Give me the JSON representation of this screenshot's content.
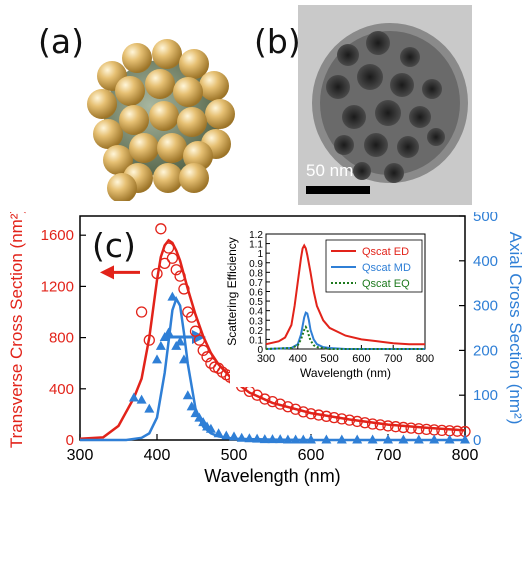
{
  "panels": {
    "a": "(a)",
    "b": "(b)",
    "c": "(c)"
  },
  "tem_scale_label": "50 nm",
  "colors": {
    "red": "#e2231a",
    "blue": "#2f7fd6",
    "green": "#1e7a1e",
    "gold": "#d9b15f",
    "core": "#5f6f52"
  },
  "chart_data": [
    {
      "type": "line",
      "xlabel": "Wavelength (nm)",
      "ylabel_left": "Transverse Cross Section (nm²)",
      "ylabel_right": "Axial Cross Section (nm²)",
      "xlim": [
        300,
        800
      ],
      "ylim_left": [
        0,
        1750
      ],
      "ylim_right": [
        0,
        500
      ],
      "xticks": [
        300,
        400,
        500,
        600,
        700,
        800
      ],
      "yticks_left": [
        0,
        400,
        800,
        1200,
        1600
      ],
      "yticks_right": [
        0,
        100,
        200,
        300,
        400,
        500
      ],
      "series": [
        {
          "axis": "left",
          "style": "line",
          "color": "#e2231a",
          "x": [
            300,
            330,
            350,
            370,
            380,
            390,
            400,
            405,
            410,
            415,
            420,
            425,
            430,
            440,
            450,
            460,
            470,
            480,
            500,
            520,
            550,
            600,
            650,
            700,
            750,
            800
          ],
          "y": [
            10,
            20,
            110,
            330,
            480,
            800,
            1250,
            1430,
            1520,
            1560,
            1540,
            1480,
            1400,
            1180,
            980,
            810,
            680,
            590,
            460,
            370,
            290,
            210,
            160,
            120,
            95,
            75
          ]
        },
        {
          "axis": "left",
          "style": "circle",
          "color": "#e2231a",
          "x": [
            380,
            390,
            400,
            405,
            410,
            415,
            420,
            425,
            430,
            435,
            440,
            445,
            450,
            455,
            460,
            465,
            470,
            475,
            480,
            485,
            490,
            495,
            500,
            510,
            520,
            530,
            540,
            550,
            560,
            570,
            580,
            590,
            600,
            610,
            620,
            630,
            640,
            650,
            660,
            670,
            680,
            690,
            700,
            710,
            720,
            730,
            740,
            750,
            760,
            770,
            780,
            790,
            800
          ],
          "y": [
            1000,
            780,
            1300,
            1650,
            1380,
            1500,
            1420,
            1330,
            1280,
            1180,
            1000,
            960,
            850,
            780,
            700,
            650,
            600,
            570,
            560,
            530,
            510,
            490,
            470,
            420,
            380,
            350,
            320,
            300,
            280,
            260,
            240,
            220,
            205,
            195,
            185,
            175,
            165,
            155,
            145,
            135,
            125,
            118,
            110,
            104,
            98,
            93,
            88,
            83,
            79,
            75,
            72,
            69,
            66
          ]
        },
        {
          "axis": "right",
          "style": "line",
          "color": "#2f7fd6",
          "x": [
            300,
            360,
            380,
            390,
            400,
            410,
            415,
            420,
            425,
            430,
            435,
            440,
            450,
            460,
            470,
            480,
            500,
            550,
            600,
            800
          ],
          "y": [
            0,
            0,
            5,
            15,
            50,
            150,
            220,
            290,
            315,
            300,
            240,
            170,
            70,
            30,
            15,
            8,
            3,
            1,
            0,
            0
          ]
        },
        {
          "axis": "right",
          "style": "triangle",
          "color": "#2f7fd6",
          "x": [
            370,
            380,
            390,
            400,
            405,
            410,
            415,
            420,
            425,
            430,
            435,
            440,
            445,
            450,
            455,
            460,
            465,
            470,
            480,
            490,
            500,
            510,
            520,
            530,
            540,
            550,
            560,
            570,
            580,
            590,
            600,
            620,
            640,
            660,
            680,
            700,
            720,
            740,
            760,
            780,
            800
          ],
          "y": [
            95,
            90,
            70,
            180,
            210,
            230,
            240,
            320,
            210,
            220,
            180,
            100,
            75,
            60,
            50,
            40,
            30,
            25,
            15,
            10,
            8,
            5,
            4,
            3,
            2,
            2,
            2,
            1,
            1,
            1,
            1,
            1,
            1,
            1,
            1,
            1,
            1,
            1,
            1,
            1,
            1
          ]
        }
      ]
    },
    {
      "type": "line",
      "xlabel": "Wavelength (nm)",
      "ylabel": "Scattering Efficiency",
      "xlim": [
        300,
        800
      ],
      "ylim": [
        0,
        1.2
      ],
      "xticks": [
        300,
        400,
        500,
        600,
        700,
        800
      ],
      "yticks": [
        0,
        0.1,
        0.2,
        0.3,
        0.4,
        0.5,
        0.6,
        0.7,
        0.8,
        0.9,
        1,
        1.1,
        1.2
      ],
      "legend_position": "top-right",
      "series": [
        {
          "name": "Qscat ED",
          "color": "#e2231a",
          "dash": "solid",
          "x": [
            300,
            340,
            360,
            380,
            390,
            400,
            410,
            415,
            420,
            425,
            430,
            440,
            450,
            460,
            480,
            500,
            550,
            600,
            650,
            700,
            750,
            800
          ],
          "y": [
            0.05,
            0.08,
            0.12,
            0.25,
            0.45,
            0.7,
            0.95,
            1.05,
            1.08,
            1.05,
            0.98,
            0.8,
            0.6,
            0.45,
            0.3,
            0.22,
            0.14,
            0.1,
            0.08,
            0.06,
            0.05,
            0.05
          ]
        },
        {
          "name": "Qscat MD",
          "color": "#2f7fd6",
          "dash": "solid",
          "x": [
            300,
            380,
            400,
            410,
            420,
            425,
            430,
            435,
            440,
            450,
            460,
            480,
            500,
            550,
            800
          ],
          "y": [
            0,
            0.01,
            0.05,
            0.15,
            0.33,
            0.38,
            0.37,
            0.3,
            0.2,
            0.1,
            0.05,
            0.02,
            0.01,
            0,
            0
          ]
        },
        {
          "name": "Qscat EQ",
          "color": "#1e7a1e",
          "dash": "dotted",
          "x": [
            300,
            380,
            400,
            410,
            420,
            425,
            430,
            435,
            440,
            450,
            460,
            480,
            500,
            800
          ],
          "y": [
            0,
            0.01,
            0.04,
            0.1,
            0.2,
            0.23,
            0.2,
            0.14,
            0.09,
            0.04,
            0.02,
            0.01,
            0,
            0
          ]
        }
      ]
    }
  ]
}
